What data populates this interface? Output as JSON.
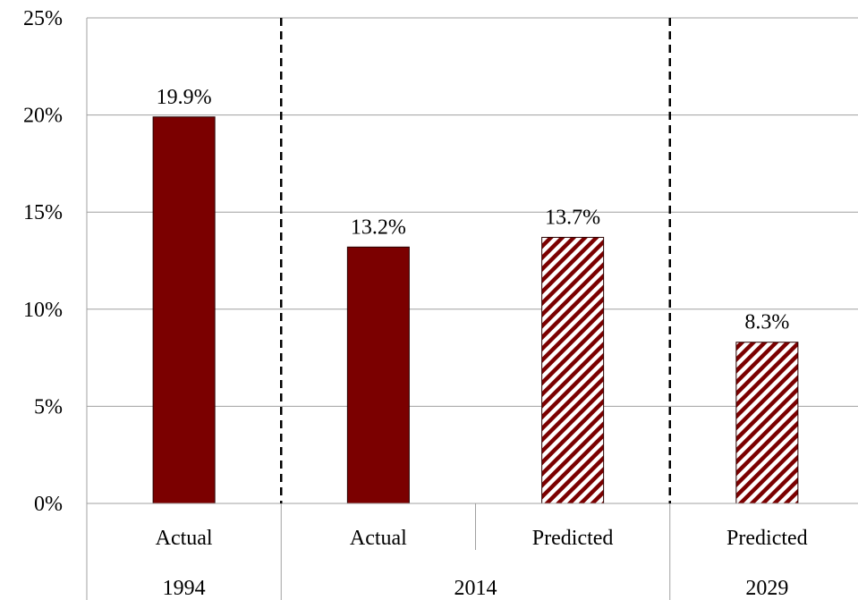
{
  "chart_data": {
    "type": "bar",
    "title": "",
    "xlabel": "",
    "ylabel": "",
    "ylim": [
      0,
      25
    ],
    "y_ticks": [
      0,
      5,
      10,
      15,
      20,
      25
    ],
    "y_tick_labels": [
      "0%",
      "5%",
      "10%",
      "15%",
      "20%",
      "25%"
    ],
    "grid": "horizontal",
    "legend": "none",
    "groups": [
      {
        "label": "1994",
        "categories": [
          "Actual"
        ]
      },
      {
        "label": "2014",
        "categories": [
          "Actual",
          "Predicted"
        ]
      },
      {
        "label": "2029",
        "categories": [
          "Predicted"
        ]
      }
    ],
    "bars": [
      {
        "group": "1994",
        "category": "Actual",
        "value": 19.9,
        "label": "19.9%",
        "style": "solid"
      },
      {
        "group": "2014",
        "category": "Actual",
        "value": 13.2,
        "label": "13.2%",
        "style": "solid"
      },
      {
        "group": "2014",
        "category": "Predicted",
        "value": 13.7,
        "label": "13.7%",
        "style": "hatched"
      },
      {
        "group": "2029",
        "category": "Predicted",
        "value": 8.3,
        "label": "8.3%",
        "style": "hatched"
      }
    ],
    "colors": {
      "bar": "#7b0000",
      "hatch_background": "#ffffff",
      "grid": "#a0a0a0",
      "separator": "#000000"
    }
  }
}
